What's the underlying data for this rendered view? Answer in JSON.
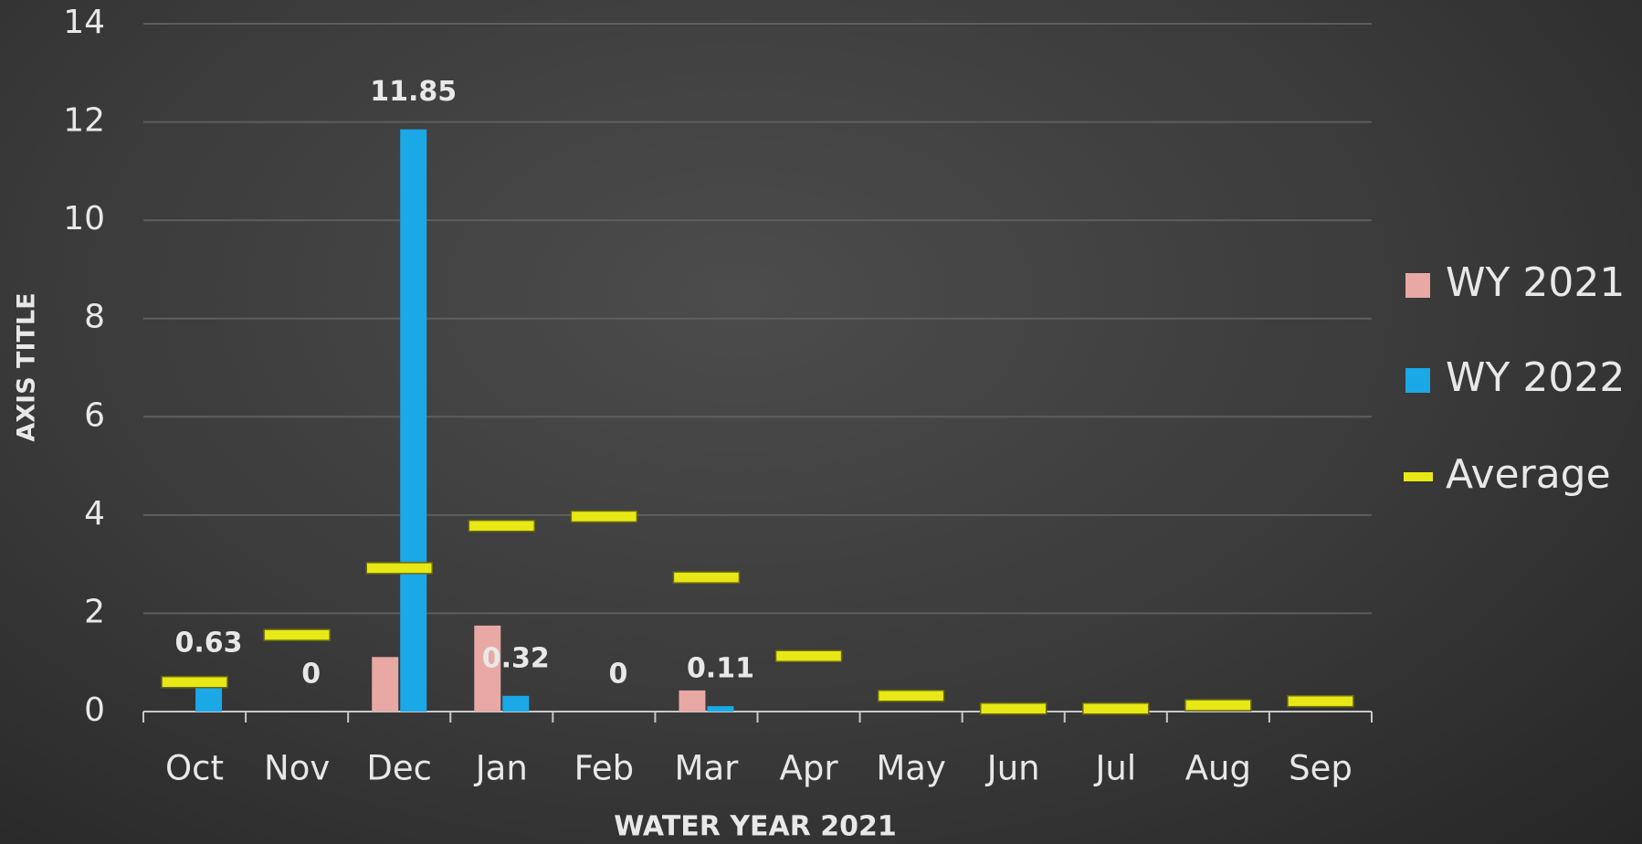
{
  "chart_data": {
    "type": "bar",
    "x_label": "WATER YEAR 2021",
    "y_label": "AXIS TITLE",
    "categories": [
      "Oct",
      "Nov",
      "Dec",
      "Jan",
      "Feb",
      "Mar",
      "Apr",
      "May",
      "Jun",
      "Jul",
      "Aug",
      "Sep"
    ],
    "series": [
      {
        "name": "WY 2021",
        "color": "#e8a8a4",
        "values": [
          0,
          0,
          1.11,
          1.75,
          0,
          0.43,
          null,
          null,
          null,
          null,
          null,
          null
        ]
      },
      {
        "name": "WY 2022",
        "color": "#1aa8e6",
        "values": [
          0.63,
          0,
          11.85,
          0.32,
          0,
          0.11,
          null,
          null,
          null,
          null,
          null,
          null
        ],
        "data_labels": true
      },
      {
        "name": "Average",
        "color": "#e8e816",
        "marker": "dash",
        "values": [
          0.6,
          1.56,
          2.92,
          3.78,
          3.97,
          2.73,
          1.13,
          0.32,
          0.06,
          0.06,
          0.13,
          0.21
        ]
      }
    ],
    "ylim": [
      0,
      14
    ],
    "yticks": [
      0,
      2,
      4,
      6,
      8,
      10,
      12,
      14
    ],
    "grid": true,
    "legend": "right"
  }
}
